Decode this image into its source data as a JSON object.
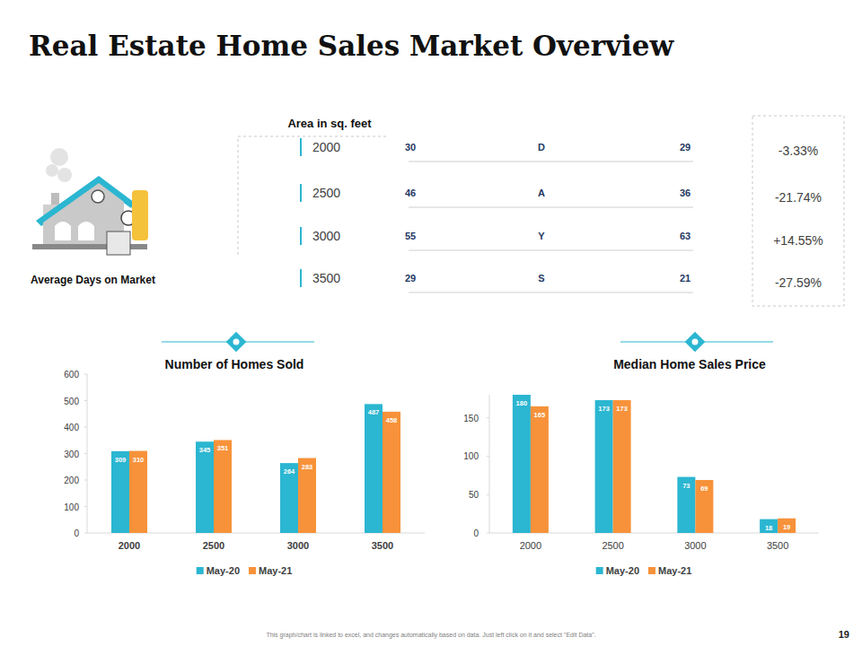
{
  "header": {
    "title": "Real Estate Home Sales Market Overview"
  },
  "days_table": {
    "label": "Average Days on Market",
    "column_title": "Area in sq. feet",
    "rows": [
      {
        "area": 2000,
        "before": 30,
        "letter": "D",
        "after": 29,
        "change": "-3.33%"
      },
      {
        "area": 2500,
        "before": 46,
        "letter": "A",
        "after": 36,
        "change": "-21.74%"
      },
      {
        "area": 3000,
        "before": 55,
        "letter": "Y",
        "after": 63,
        "change": "+14.55%"
      },
      {
        "area": 3500,
        "before": 29,
        "letter": "S",
        "after": 21,
        "change": "-27.59%"
      }
    ]
  },
  "chart_data": [
    {
      "type": "bar",
      "title": "Number of Homes Sold",
      "categories": [
        "2000",
        "2500",
        "3000",
        "3500"
      ],
      "series": [
        {
          "name": "May-20",
          "color": "#2bb6d1",
          "values": [
            309,
            345,
            264,
            487
          ]
        },
        {
          "name": "May-21",
          "color": "#f7923a",
          "values": [
            310,
            351,
            283,
            458
          ]
        }
      ],
      "ylim": [
        0,
        600
      ],
      "yticks": [
        0,
        100,
        200,
        300,
        400,
        500,
        600
      ],
      "grid": false,
      "legend": "bottom",
      "data_labels": true
    },
    {
      "type": "bar",
      "title": "Median Home Sales Price",
      "categories": [
        "2000",
        "2500",
        "3000",
        "3500"
      ],
      "series": [
        {
          "name": "May-20",
          "color": "#2bb6d1",
          "values": [
            180,
            173,
            73,
            18
          ]
        },
        {
          "name": "May-21",
          "color": "#f7923a",
          "values": [
            165,
            173,
            69,
            19
          ]
        }
      ],
      "ylim": [
        0,
        180
      ],
      "yticks": [
        0,
        50,
        100,
        150
      ],
      "grid": false,
      "legend": "bottom",
      "data_labels": true
    }
  ],
  "footer": {
    "note": "This graph/chart is linked to excel, and changes automatically based on data. Just left click on it and select \"Edit Data\".",
    "page": 19
  }
}
